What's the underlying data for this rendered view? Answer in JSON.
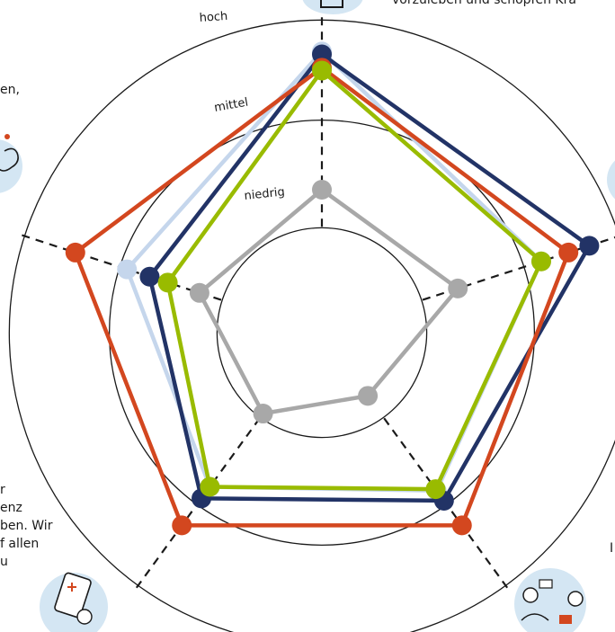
{
  "page_text": {
    "top_right": "vorzuleben und schöpfen Kra",
    "left_upper": [
      "en,"
    ],
    "left_lower": [
      "r",
      "enz",
      "ben. Wir",
      "f allen",
      "u"
    ],
    "right_lower": "I"
  },
  "chart_data": {
    "type": "radar",
    "title": "",
    "scale": [
      "niedrig",
      "mittel",
      "hoch"
    ],
    "axes_count": 5,
    "range": [
      0,
      3
    ],
    "series": [
      {
        "color": "#a8a8a8",
        "values": [
          1.5,
          1.5,
          0.82,
          1.05,
          1.35
        ]
      },
      {
        "color": "#c5d6ec",
        "values": [
          2.95,
          2.42,
          2.05,
          2.0,
          2.15
        ]
      },
      {
        "color": "#223366",
        "values": [
          2.92,
          2.95,
          2.18,
          2.15,
          1.9
        ]
      },
      {
        "color": "#d3471f",
        "values": [
          2.78,
          2.72,
          2.5,
          2.5,
          2.72
        ]
      },
      {
        "color": "#99bb00",
        "values": [
          2.75,
          2.42,
          2.03,
          2.0,
          1.7
        ]
      }
    ],
    "grid": true,
    "legend": "none"
  },
  "icons": [
    "gift-icon",
    "chicken-icon",
    "tablet-icon",
    "team-icon",
    "hand-icon"
  ],
  "colors": {
    "ring": "#1a1a1a",
    "axis": "#1a1a1a",
    "icon_bg": "#d4e6f3"
  }
}
